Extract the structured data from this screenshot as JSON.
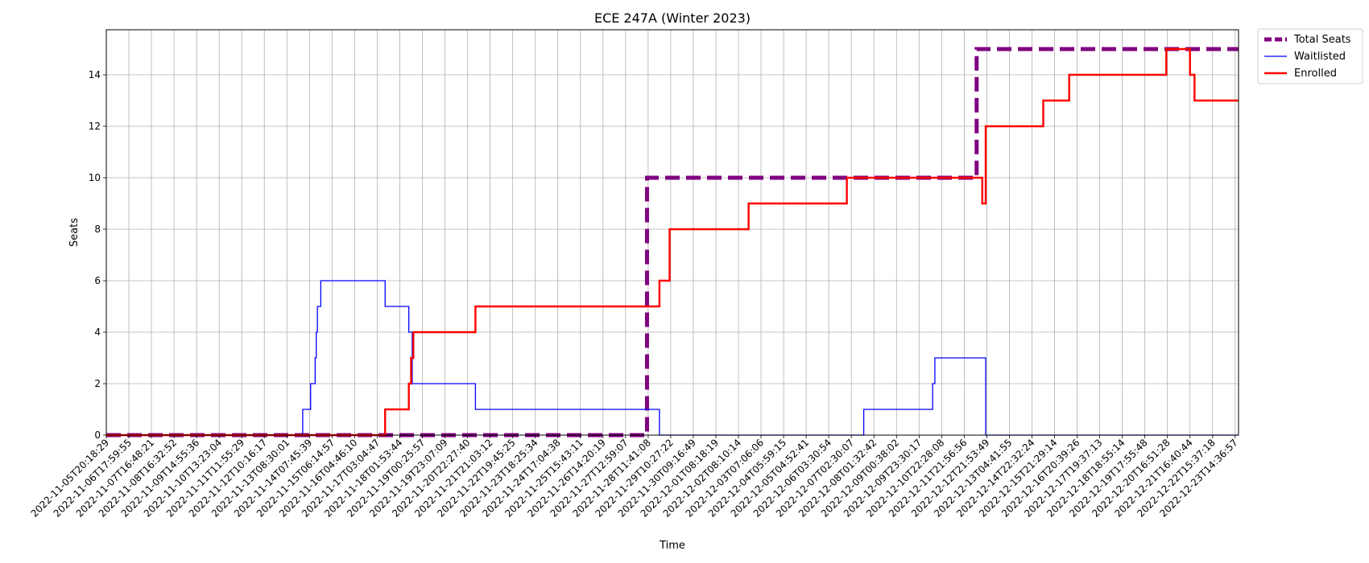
{
  "chart_data": {
    "type": "line",
    "title": "ECE 247A (Winter 2023)",
    "xlabel": "Time",
    "ylabel": "Seats",
    "ylim": [
      0,
      15.75
    ],
    "yticks": [
      0,
      2,
      4,
      6,
      8,
      10,
      12,
      14
    ],
    "grid": true,
    "legend_position": "outside-top-right",
    "categories": [
      "2022-11-05T20:18:29",
      "2022-11-06T17:59:55",
      "2022-11-07T16:48:21",
      "2022-11-08T16:32:52",
      "2022-11-09T14:55:36",
      "2022-11-10T13:23:04",
      "2022-11-11T11:55:29",
      "2022-11-12T10:16:17",
      "2022-11-13T08:30:01",
      "2022-11-14T07:45:39",
      "2022-11-15T06:14:57",
      "2022-11-16T04:46:10",
      "2022-11-17T03:04:47",
      "2022-11-18T01:53:44",
      "2022-11-19T00:25:57",
      "2022-11-19T23:07:09",
      "2022-11-20T22:27:40",
      "2022-11-21T21:03:12",
      "2022-11-22T19:45:25",
      "2022-11-23T18:25:34",
      "2022-11-24T17:04:38",
      "2022-11-25T15:43:11",
      "2022-11-26T14:20:19",
      "2022-11-27T12:59:07",
      "2022-11-28T11:41:08",
      "2022-11-29T10:27:22",
      "2022-11-30T09:16:49",
      "2022-12-01T08:18:19",
      "2022-12-02T08:10:14",
      "2022-12-03T07:06:06",
      "2022-12-04T05:59:15",
      "2022-12-05T04:52:41",
      "2022-12-06T03:30:54",
      "2022-12-07T02:30:07",
      "2022-12-08T01:32:42",
      "2022-12-09T00:38:02",
      "2022-12-09T23:30:17",
      "2022-12-10T22:28:08",
      "2022-12-11T21:56:56",
      "2022-12-12T21:53:49",
      "2022-12-13T04:41:55",
      "2022-12-14T22:32:24",
      "2022-12-15T21:29:14",
      "2022-12-16T20:39:26",
      "2022-12-17T19:37:13",
      "2022-12-18T18:55:14",
      "2022-12-19T17:55:48",
      "2022-12-20T16:51:28",
      "2022-12-21T16:40:44",
      "2022-12-22T15:37:18",
      "2022-12-23T14:36:57"
    ],
    "series": [
      {
        "name": "Total Seats",
        "color": "#800080",
        "style": "dashed",
        "points": [
          [
            0,
            0
          ],
          [
            23.95,
            0
          ],
          [
            23.95,
            10
          ],
          [
            38.55,
            10
          ],
          [
            38.55,
            15
          ],
          [
            50.15,
            15
          ]
        ]
      },
      {
        "name": "Waitlisted",
        "color": "#0000ff",
        "style": "solid",
        "points": [
          [
            0,
            0
          ],
          [
            8.7,
            0
          ],
          [
            8.7,
            1
          ],
          [
            9.05,
            1
          ],
          [
            9.05,
            2
          ],
          [
            9.25,
            2
          ],
          [
            9.25,
            3
          ],
          [
            9.3,
            3
          ],
          [
            9.3,
            4
          ],
          [
            9.35,
            4
          ],
          [
            9.35,
            5
          ],
          [
            9.5,
            5
          ],
          [
            9.5,
            6
          ],
          [
            12.35,
            6
          ],
          [
            12.35,
            5
          ],
          [
            13.4,
            5
          ],
          [
            13.4,
            4
          ],
          [
            13.55,
            4
          ],
          [
            13.55,
            2
          ],
          [
            16.35,
            2
          ],
          [
            16.35,
            1
          ],
          [
            24.5,
            1
          ],
          [
            24.5,
            0
          ],
          [
            33.55,
            0
          ],
          [
            33.55,
            1
          ],
          [
            36.6,
            1
          ],
          [
            36.6,
            2
          ],
          [
            36.7,
            2
          ],
          [
            36.7,
            3
          ],
          [
            38.95,
            3
          ],
          [
            38.95,
            0
          ],
          [
            50.15,
            0
          ]
        ]
      },
      {
        "name": "Enrolled",
        "color": "#ff0000",
        "style": "solid",
        "points": [
          [
            0,
            0
          ],
          [
            12.35,
            0
          ],
          [
            12.35,
            1
          ],
          [
            13.4,
            1
          ],
          [
            13.4,
            2
          ],
          [
            13.5,
            2
          ],
          [
            13.5,
            3
          ],
          [
            13.6,
            3
          ],
          [
            13.6,
            4
          ],
          [
            16.35,
            4
          ],
          [
            16.35,
            5
          ],
          [
            24.5,
            5
          ],
          [
            24.5,
            6
          ],
          [
            24.95,
            6
          ],
          [
            24.95,
            8
          ],
          [
            28.45,
            8
          ],
          [
            28.45,
            9
          ],
          [
            32.8,
            9
          ],
          [
            32.8,
            10
          ],
          [
            38.8,
            10
          ],
          [
            38.8,
            9
          ],
          [
            38.95,
            9
          ],
          [
            38.95,
            12
          ],
          [
            41.5,
            12
          ],
          [
            41.5,
            13
          ],
          [
            42.65,
            13
          ],
          [
            42.65,
            14
          ],
          [
            46.95,
            14
          ],
          [
            46.95,
            15
          ],
          [
            48.0,
            15
          ],
          [
            48.0,
            14
          ],
          [
            48.2,
            14
          ],
          [
            48.2,
            13
          ],
          [
            50.15,
            13
          ]
        ]
      }
    ]
  }
}
